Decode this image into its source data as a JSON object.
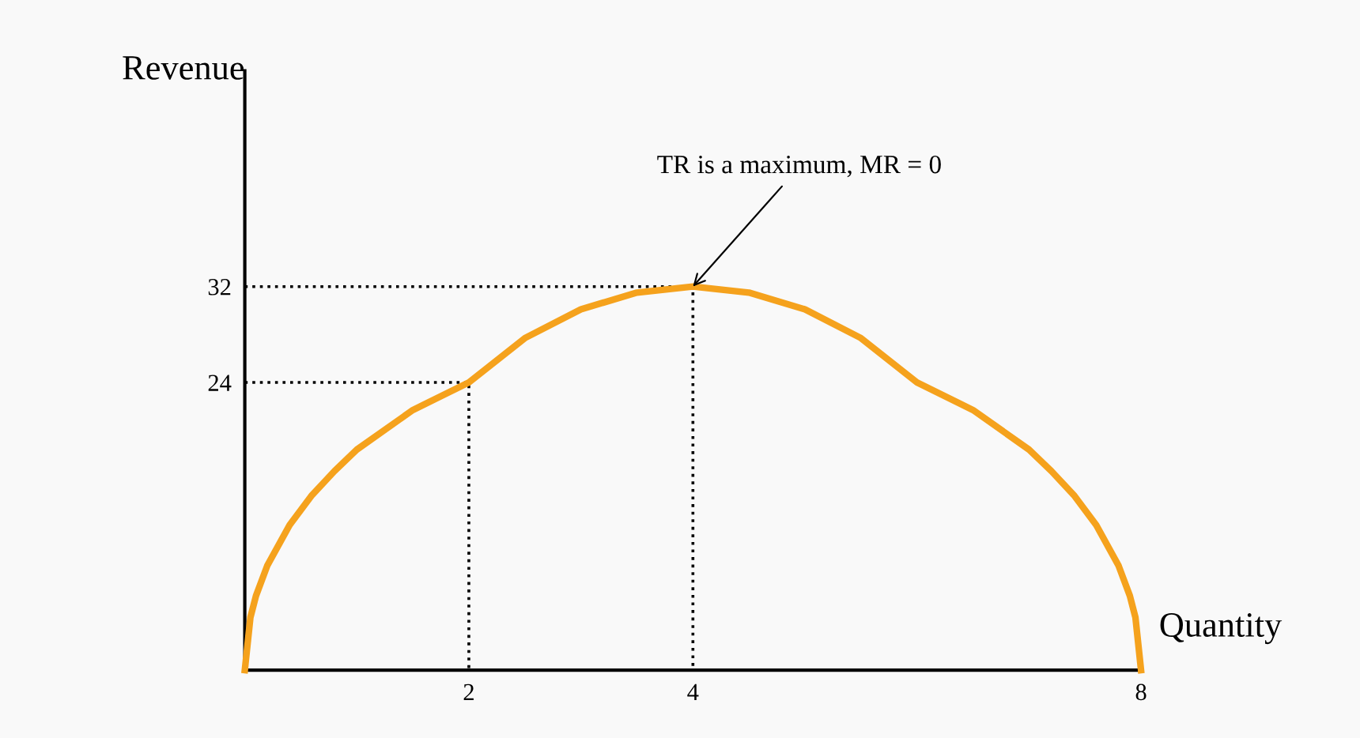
{
  "chart_data": {
    "type": "line",
    "xlabel": "Quantity",
    "ylabel": "Revenue",
    "xlim": [
      0,
      8
    ],
    "ylim": [
      0,
      50
    ],
    "xticks": [
      2,
      4,
      8
    ],
    "yticks": [
      24,
      32
    ],
    "marker": "none",
    "series": [
      {
        "color": "#f5a21d",
        "line_style": "solid",
        "x": [
          0,
          0.05,
          0.1,
          0.2,
          0.4,
          0.6,
          0.8,
          1,
          1.5,
          2,
          2.5,
          3,
          3.5,
          4,
          4.5,
          5,
          5.5,
          6,
          6.5,
          7,
          7.2,
          7.4,
          7.6,
          7.8,
          7.9,
          7.95,
          8
        ],
        "values": [
          0,
          4.4,
          6.2,
          8.7,
          12.1,
          14.6,
          16.6,
          18.4,
          21.7,
          24,
          27.7,
          30.1,
          31.5,
          32,
          31.5,
          30.1,
          27.7,
          24,
          21.7,
          18.4,
          16.6,
          14.6,
          12.1,
          8.7,
          6.2,
          4.4,
          0
        ]
      },
      {
        "color": "#000000",
        "line_style": "dotted",
        "x": [
          0,
          4,
          4
        ],
        "values": [
          32,
          32,
          0
        ]
      },
      {
        "color": "#000000",
        "line_style": "dotted",
        "x": [
          0,
          2,
          2
        ],
        "values": [
          24,
          24,
          0
        ]
      }
    ],
    "annotations": [
      {
        "text": "TR is a maximum, MR = 0",
        "x": 4,
        "y": 32
      }
    ]
  }
}
